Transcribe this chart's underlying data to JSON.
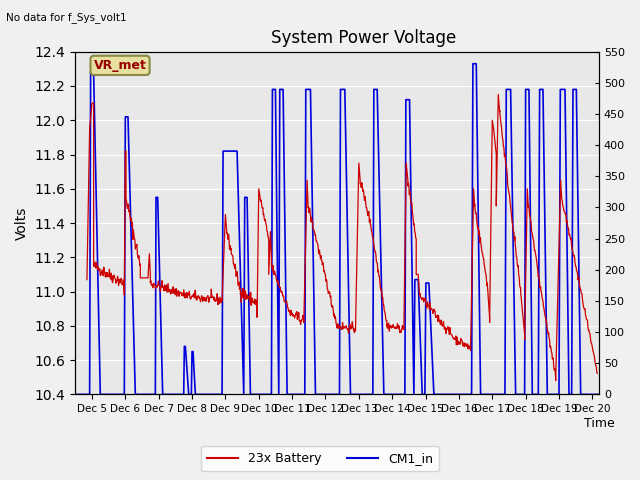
{
  "title": "System Power Voltage",
  "xlabel": "Time",
  "ylabel": "Volts",
  "top_left_text": "No data for f_Sys_volt1",
  "annotation_text": "VR_met",
  "xlim_days": [
    4.5,
    20.2
  ],
  "ylim_left": [
    10.4,
    12.4
  ],
  "ylim_right": [
    0,
    550
  ],
  "yticks_left": [
    10.4,
    10.6,
    10.8,
    11.0,
    11.2,
    11.4,
    11.6,
    11.8,
    12.0,
    12.2,
    12.4
  ],
  "yticks_right": [
    0,
    50,
    100,
    150,
    200,
    250,
    300,
    350,
    400,
    450,
    500,
    550
  ],
  "xtick_positions": [
    5,
    6,
    7,
    8,
    9,
    10,
    11,
    12,
    13,
    14,
    15,
    16,
    17,
    18,
    19,
    20
  ],
  "xtick_labels": [
    "Dec 5",
    "Dec 6",
    "Dec 7",
    "Dec 8",
    "Dec 9",
    "Dec 10",
    "Dec 11",
    "Dec 12",
    "Dec 13",
    "Dec 14",
    "Dec 15",
    "Dec 16",
    "Dec 17",
    "Dec 18",
    "Dec 19",
    "Dec 20"
  ],
  "plot_bg_color": "#e8e8e8",
  "fig_bg_color": "#f0f0f0",
  "red_color": "#cc0000",
  "blue_color": "#0000dd",
  "grid_color": "#ffffff",
  "legend_entries": [
    "23x Battery",
    "CM1_in"
  ],
  "annotation_box_facecolor": "#e8e0a0",
  "annotation_box_edgecolor": "#888844"
}
